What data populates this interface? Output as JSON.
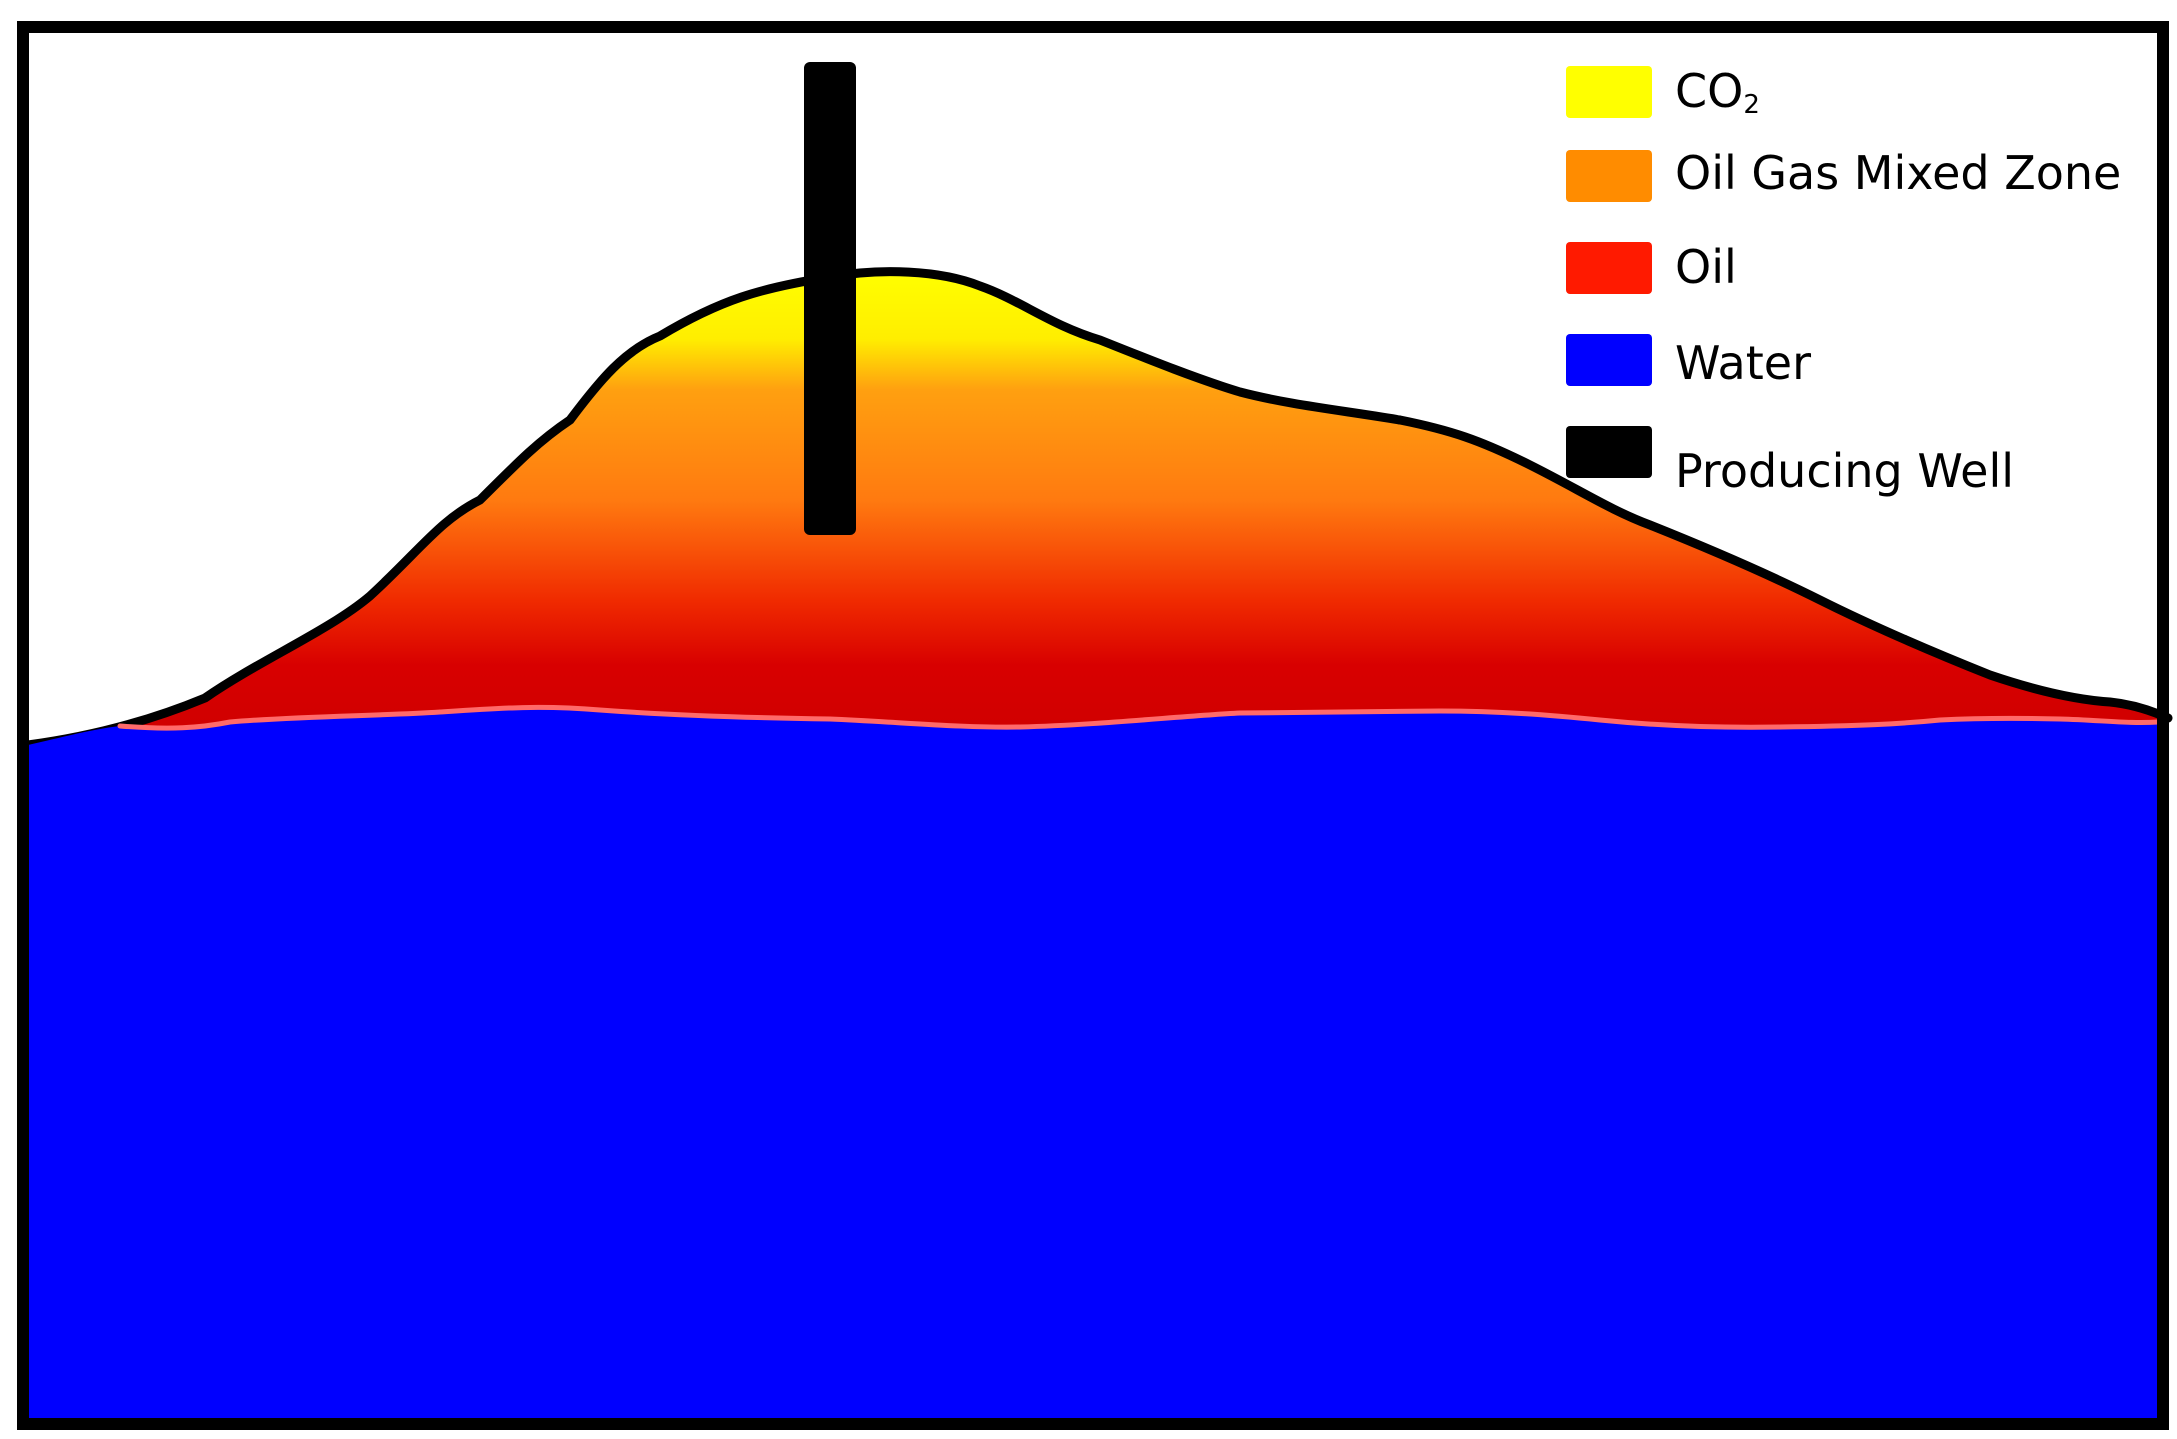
{
  "colors": {
    "co2": "#ffff00",
    "mixed_zone": "#ff8c00",
    "oil": "#ff1a00",
    "oil_deep": "#d40000",
    "water": "#0000ff",
    "well": "#000000",
    "interface": "#ff6a6a",
    "frame": "#000000",
    "background": "#ffffff"
  },
  "legend": {
    "co2": {
      "label_main": "CO",
      "label_sub": "2"
    },
    "mixed_zone": {
      "label": "Oil Gas Mixed Zone"
    },
    "oil": {
      "label": "Oil"
    },
    "water": {
      "label": "Water"
    },
    "well": {
      "label": "Producing Well"
    }
  }
}
